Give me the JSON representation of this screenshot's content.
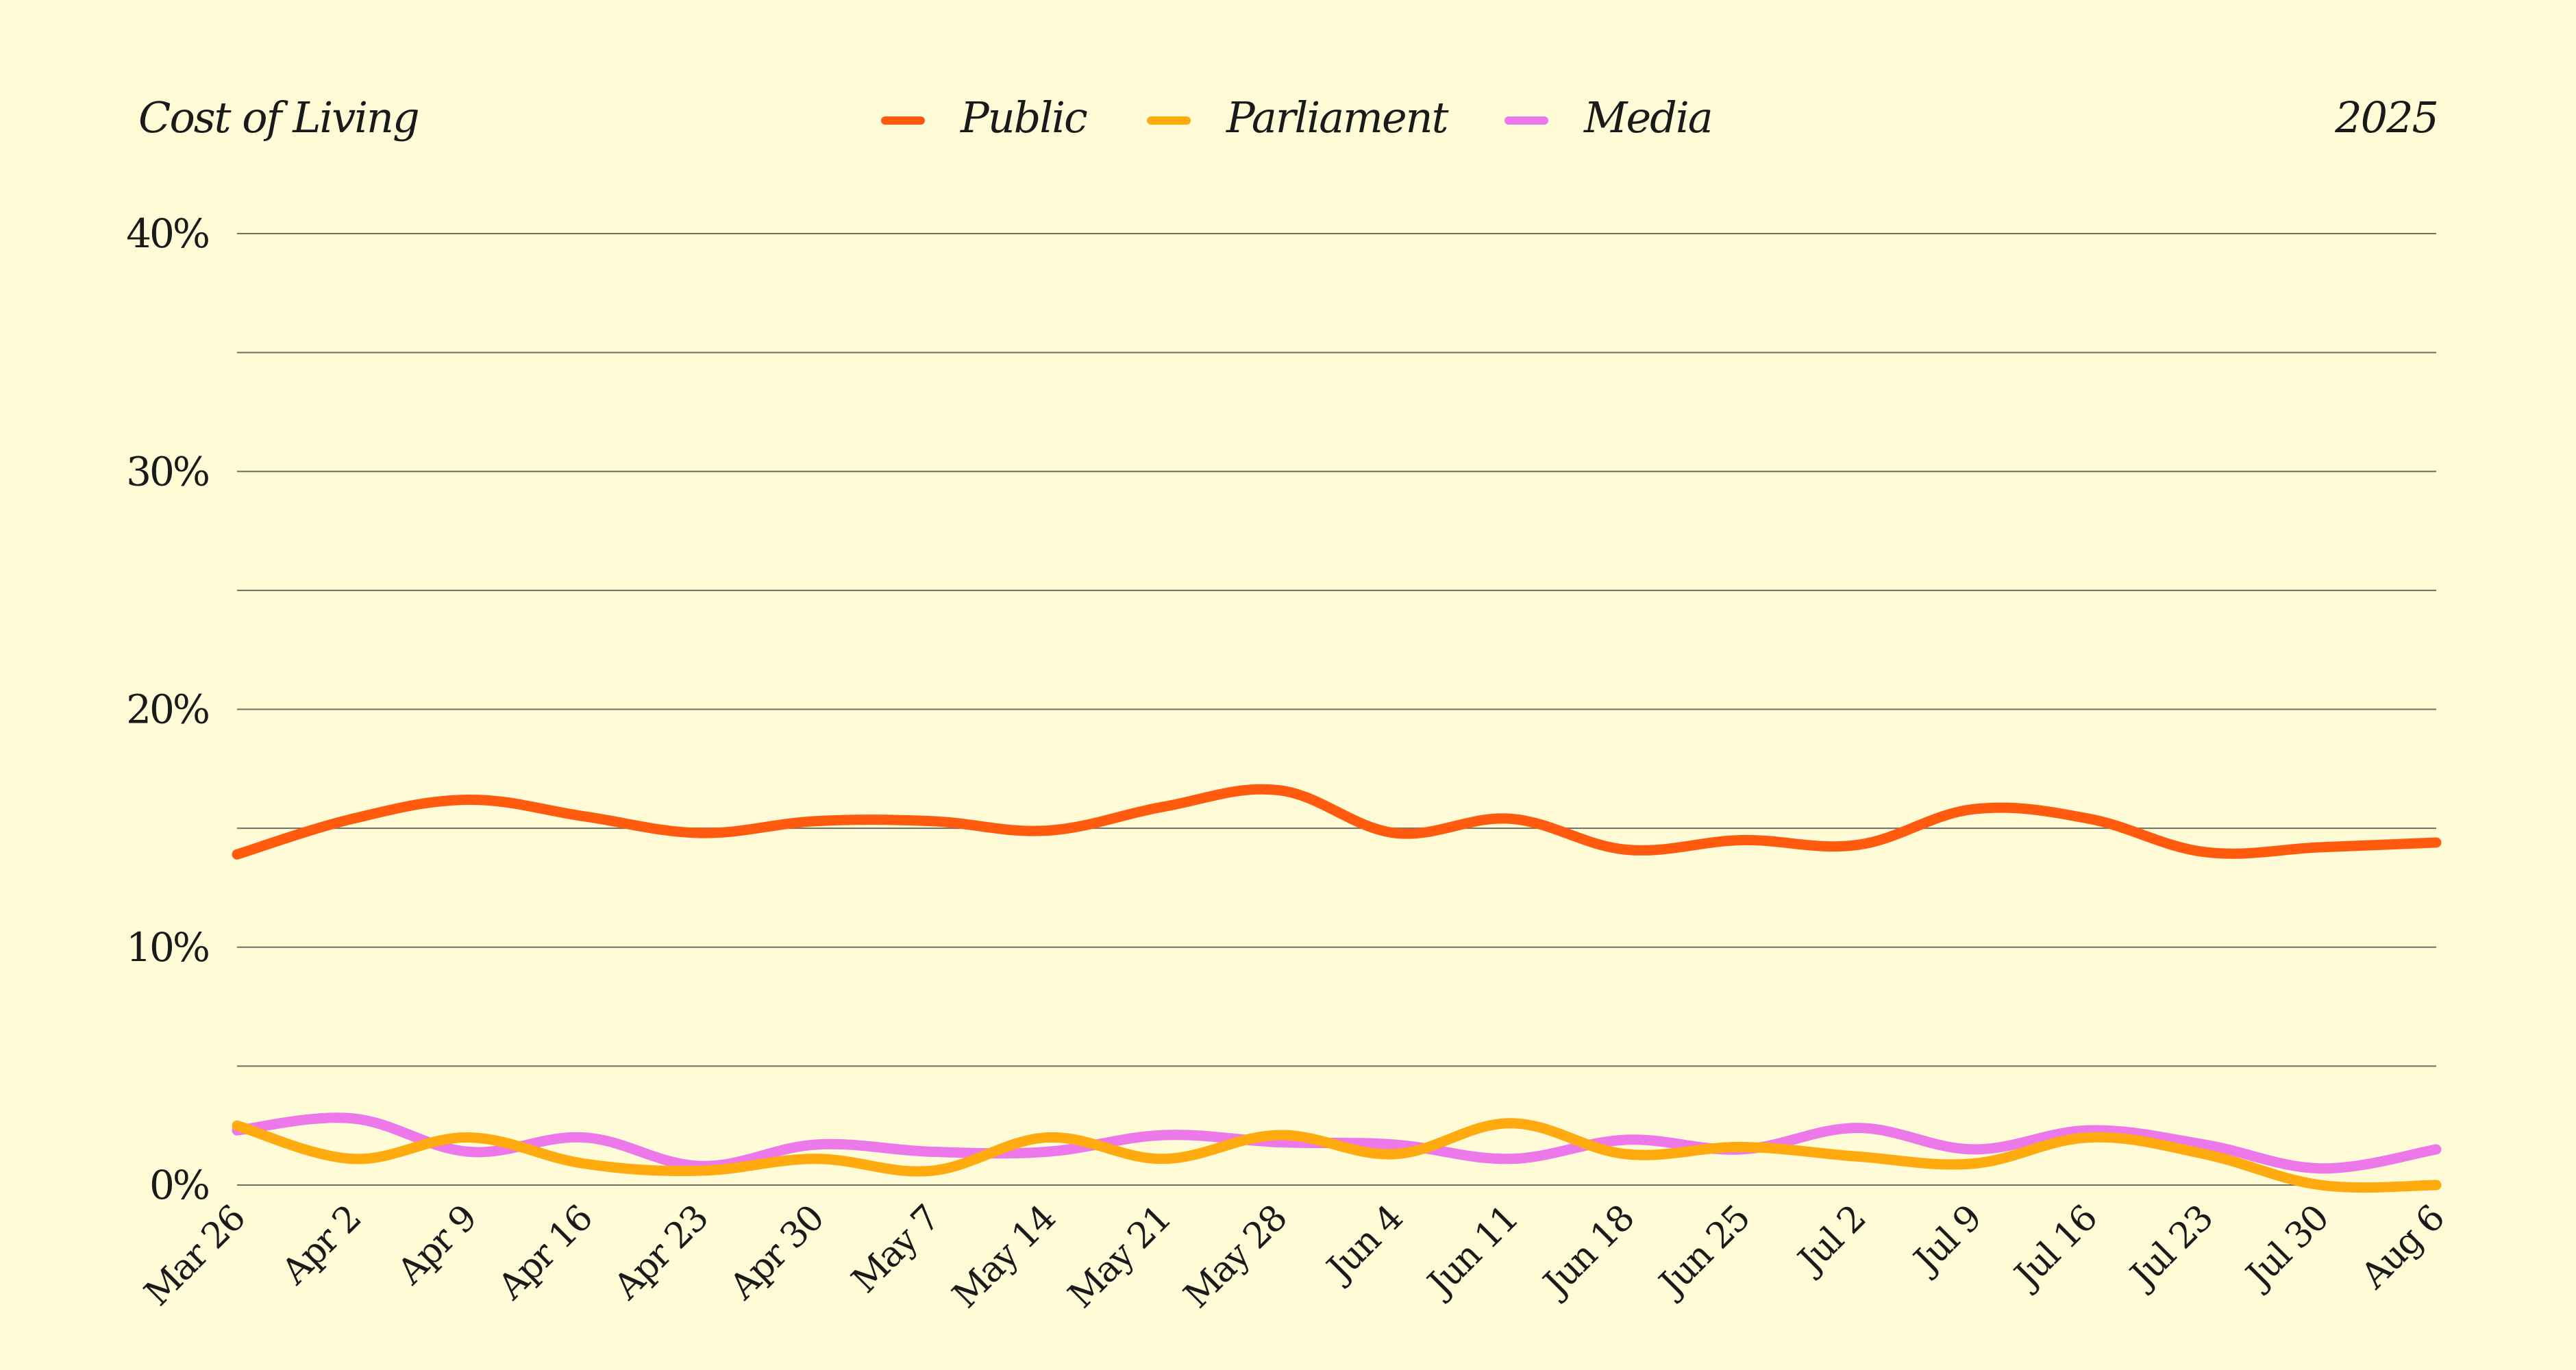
{
  "chart_data": {
    "type": "line",
    "title": "Cost of Living",
    "year_label": "2025",
    "categories": [
      "Mar 26",
      "Apr 2",
      "Apr 9",
      "Apr 16",
      "Apr 23",
      "Apr 30",
      "May 7",
      "May 14",
      "May 21",
      "May 28",
      "Jun 4",
      "Jun 11",
      "Jun 18",
      "Jun 25",
      "Jul 2",
      "Jul 9",
      "Jul 16",
      "Jul 23",
      "Jul 30",
      "Aug 6"
    ],
    "y_ticks": [
      "0%",
      "10%",
      "20%",
      "30%",
      "40%"
    ],
    "ylim": [
      0,
      40
    ],
    "grid": true,
    "legend_position": "top-center",
    "series": [
      {
        "name": "Media",
        "color": "#ec78ea",
        "values": [
          2.3,
          2.8,
          1.4,
          2.0,
          0.8,
          1.7,
          1.4,
          1.4,
          2.1,
          1.8,
          1.7,
          1.1,
          1.9,
          1.5,
          2.4,
          1.5,
          2.3,
          1.7,
          0.7,
          1.5
        ]
      },
      {
        "name": "Parliament",
        "color": "#ffaa0f",
        "values": [
          2.5,
          1.1,
          2.0,
          0.9,
          0.6,
          1.1,
          0.6,
          2.0,
          1.1,
          2.1,
          1.3,
          2.6,
          1.3,
          1.6,
          1.2,
          0.9,
          2.0,
          1.3,
          0.0,
          0.0
        ]
      },
      {
        "name": "Public",
        "color": "#ff5a0e",
        "values": [
          13.9,
          15.4,
          16.2,
          15.5,
          14.8,
          15.3,
          15.3,
          14.9,
          15.9,
          16.6,
          14.8,
          15.4,
          14.1,
          14.5,
          14.3,
          15.8,
          15.4,
          14.0,
          14.2,
          14.4
        ]
      }
    ]
  }
}
